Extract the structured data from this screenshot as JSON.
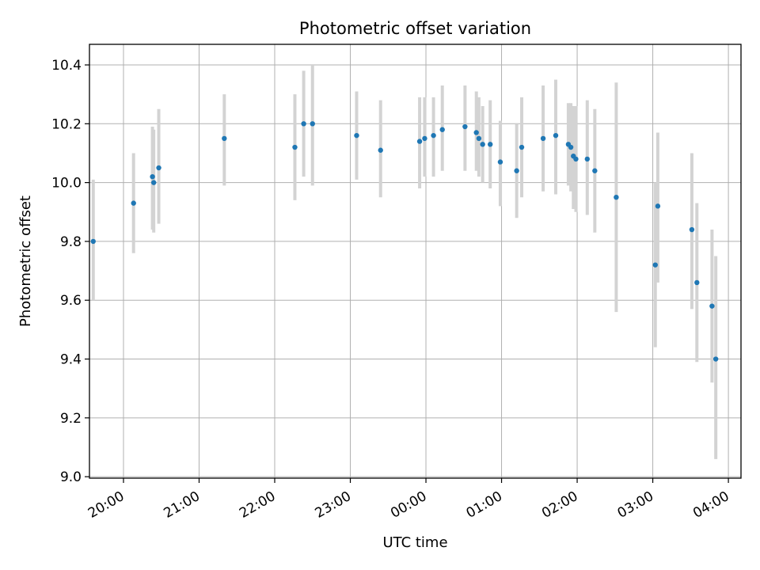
{
  "chart_data": {
    "type": "scatter",
    "title": "Photometric offset variation",
    "xlabel": "UTC time",
    "ylabel": "Photometric offset",
    "x_unit": "UTC time (HH:MM), date rolls over at 00:00",
    "xlim": [
      "19:33",
      "04:10"
    ],
    "ylim": [
      8.995,
      10.47
    ],
    "x_ticks": [
      "20:00",
      "21:00",
      "22:00",
      "23:00",
      "00:00",
      "01:00",
      "02:00",
      "03:00",
      "04:00"
    ],
    "y_ticks": [
      "9.0",
      "9.2",
      "9.4",
      "9.6",
      "9.8",
      "10.0",
      "10.2",
      "10.4"
    ],
    "grid": true,
    "legend": "none",
    "colors": {
      "points": "#1f77b4",
      "errorbars": "#d3d3d3",
      "grid": "#b0b0b0"
    },
    "series": [
      {
        "points": [
          {
            "x": "19:36",
            "y": 9.8,
            "ylow": 9.6,
            "yhigh": 10.01
          },
          {
            "x": "20:08",
            "y": 9.93,
            "ylow": 9.76,
            "yhigh": 10.1
          },
          {
            "x": "20:23",
            "y": 10.02,
            "ylow": 9.84,
            "yhigh": 10.19
          },
          {
            "x": "20:24",
            "y": 10.0,
            "ylow": 9.83,
            "yhigh": 10.18
          },
          {
            "x": "20:28",
            "y": 10.05,
            "ylow": 9.86,
            "yhigh": 10.25
          },
          {
            "x": "21:20",
            "y": 10.15,
            "ylow": 9.99,
            "yhigh": 10.3
          },
          {
            "x": "22:16",
            "y": 10.12,
            "ylow": 9.94,
            "yhigh": 10.3
          },
          {
            "x": "22:23",
            "y": 10.2,
            "ylow": 10.02,
            "yhigh": 10.38
          },
          {
            "x": "22:30",
            "y": 10.2,
            "ylow": 9.99,
            "yhigh": 10.4
          },
          {
            "x": "23:05",
            "y": 10.16,
            "ylow": 10.01,
            "yhigh": 10.31
          },
          {
            "x": "23:24",
            "y": 10.11,
            "ylow": 9.95,
            "yhigh": 10.28
          },
          {
            "x": "23:55",
            "y": 10.14,
            "ylow": 9.98,
            "yhigh": 10.29
          },
          {
            "x": "23:59",
            "y": 10.15,
            "ylow": 10.02,
            "yhigh": 10.29
          },
          {
            "x": "00:06",
            "y": 10.16,
            "ylow": 10.02,
            "yhigh": 10.29
          },
          {
            "x": "00:13",
            "y": 10.18,
            "ylow": 10.04,
            "yhigh": 10.33
          },
          {
            "x": "00:31",
            "y": 10.19,
            "ylow": 10.04,
            "yhigh": 10.33
          },
          {
            "x": "00:40",
            "y": 10.17,
            "ylow": 10.04,
            "yhigh": 10.31
          },
          {
            "x": "00:42",
            "y": 10.15,
            "ylow": 10.02,
            "yhigh": 10.29
          },
          {
            "x": "00:45",
            "y": 10.13,
            "ylow": 10.0,
            "yhigh": 10.26
          },
          {
            "x": "00:51",
            "y": 10.13,
            "ylow": 9.98,
            "yhigh": 10.28
          },
          {
            "x": "00:59",
            "y": 10.07,
            "ylow": 9.92,
            "yhigh": 10.21
          },
          {
            "x": "01:12",
            "y": 10.04,
            "ylow": 9.88,
            "yhigh": 10.2
          },
          {
            "x": "01:16",
            "y": 10.12,
            "ylow": 9.95,
            "yhigh": 10.29
          },
          {
            "x": "01:33",
            "y": 10.15,
            "ylow": 9.97,
            "yhigh": 10.33
          },
          {
            "x": "01:43",
            "y": 10.16,
            "ylow": 9.96,
            "yhigh": 10.35
          },
          {
            "x": "01:53",
            "y": 10.13,
            "ylow": 9.99,
            "yhigh": 10.27
          },
          {
            "x": "01:55",
            "y": 10.12,
            "ylow": 9.97,
            "yhigh": 10.27
          },
          {
            "x": "01:57",
            "y": 10.09,
            "ylow": 9.91,
            "yhigh": 10.26
          },
          {
            "x": "01:59",
            "y": 10.08,
            "ylow": 9.9,
            "yhigh": 10.26
          },
          {
            "x": "02:08",
            "y": 10.08,
            "ylow": 9.89,
            "yhigh": 10.28
          },
          {
            "x": "02:14",
            "y": 10.04,
            "ylow": 9.83,
            "yhigh": 10.25
          },
          {
            "x": "02:31",
            "y": 9.95,
            "ylow": 9.56,
            "yhigh": 10.34
          },
          {
            "x": "03:02",
            "y": 9.72,
            "ylow": 9.44,
            "yhigh": 10.0
          },
          {
            "x": "03:04",
            "y": 9.92,
            "ylow": 9.66,
            "yhigh": 10.17
          },
          {
            "x": "03:31",
            "y": 9.84,
            "ylow": 9.57,
            "yhigh": 10.1
          },
          {
            "x": "03:35",
            "y": 9.66,
            "ylow": 9.39,
            "yhigh": 9.93
          },
          {
            "x": "03:47",
            "y": 9.58,
            "ylow": 9.32,
            "yhigh": 9.84
          },
          {
            "x": "03:50",
            "y": 9.4,
            "ylow": 9.06,
            "yhigh": 9.75
          }
        ]
      }
    ]
  }
}
